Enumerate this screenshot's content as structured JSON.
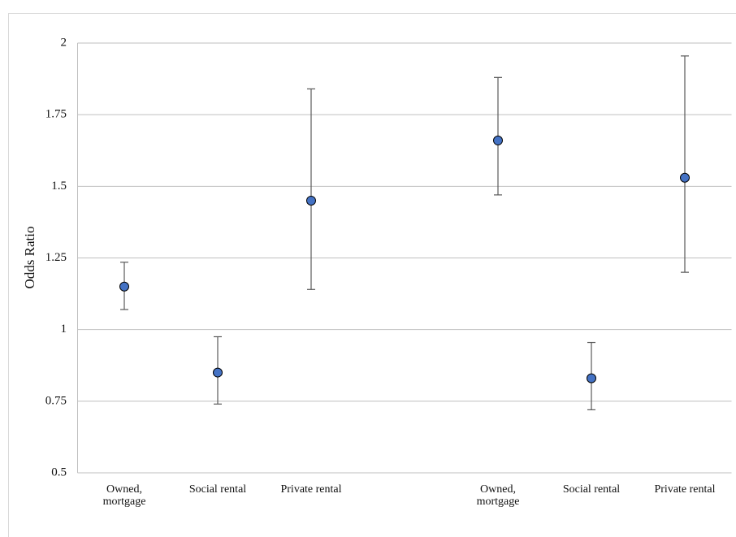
{
  "chart_data": {
    "type": "errorbar",
    "y_label": "Odds Ratio",
    "categories": [
      "Owned,\nmortgage",
      "Social rental",
      "Private rental",
      null,
      "Owned,\nmortgage",
      "Social rental",
      "Private rental"
    ],
    "values": [
      1.15,
      0.85,
      1.45,
      null,
      1.66,
      0.83,
      1.53
    ],
    "ci_lower": [
      1.07,
      0.74,
      1.14,
      null,
      1.47,
      0.72,
      1.2
    ],
    "ci_upper": [
      1.235,
      0.975,
      1.84,
      null,
      1.88,
      0.955,
      1.955
    ],
    "color": "#4472c4",
    "ylim": [
      0.5,
      2
    ],
    "yticks": [
      0.5,
      0.75,
      1,
      1.25,
      1.5,
      1.75,
      2
    ],
    "grid": true
  }
}
